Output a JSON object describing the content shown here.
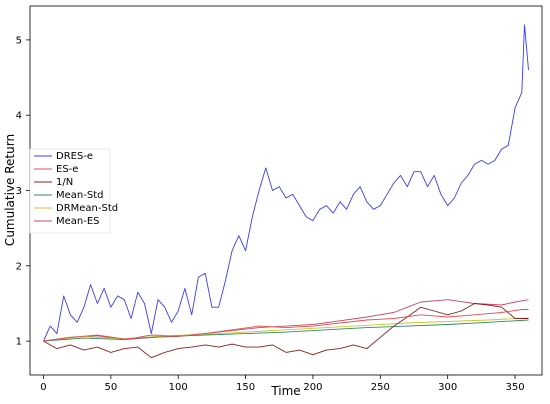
{
  "chart_data": {
    "type": "line",
    "title": "",
    "xlabel": "Time",
    "ylabel": "Cumulative Return",
    "xlim": [
      -10,
      370
    ],
    "ylim": [
      0.55,
      5.45
    ],
    "xticks": [
      0,
      50,
      100,
      150,
      200,
      250,
      300,
      350
    ],
    "yticks": [
      1,
      2,
      3,
      4,
      5
    ],
    "grid": false,
    "legend_position": "center-left",
    "series": [
      {
        "name": "DRES-e",
        "color": "#3b3bf5",
        "x": [
          0,
          5,
          10,
          15,
          20,
          25,
          30,
          35,
          40,
          45,
          50,
          55,
          60,
          65,
          70,
          75,
          80,
          85,
          90,
          95,
          100,
          105,
          110,
          115,
          120,
          125,
          130,
          135,
          140,
          145,
          150,
          155,
          160,
          165,
          170,
          175,
          180,
          185,
          190,
          195,
          200,
          205,
          210,
          215,
          220,
          225,
          230,
          235,
          240,
          245,
          250,
          255,
          260,
          265,
          270,
          275,
          280,
          285,
          290,
          295,
          300,
          305,
          310,
          315,
          320,
          325,
          330,
          335,
          340,
          345,
          350,
          355,
          357,
          360
        ],
        "y": [
          1.0,
          1.2,
          1.1,
          1.6,
          1.35,
          1.25,
          1.45,
          1.75,
          1.5,
          1.7,
          1.45,
          1.6,
          1.55,
          1.3,
          1.65,
          1.5,
          1.1,
          1.55,
          1.45,
          1.25,
          1.4,
          1.7,
          1.35,
          1.85,
          1.9,
          1.45,
          1.45,
          1.8,
          2.2,
          2.4,
          2.2,
          2.65,
          3.0,
          3.3,
          3.0,
          3.05,
          2.9,
          2.95,
          2.8,
          2.65,
          2.6,
          2.75,
          2.8,
          2.7,
          2.85,
          2.75,
          2.95,
          3.05,
          2.85,
          2.75,
          2.8,
          2.95,
          3.1,
          3.2,
          3.05,
          3.25,
          3.25,
          3.05,
          3.2,
          2.95,
          2.8,
          2.9,
          3.1,
          3.2,
          3.35,
          3.4,
          3.35,
          3.4,
          3.55,
          3.6,
          4.1,
          4.3,
          5.2,
          4.6
        ]
      },
      {
        "name": "ES-e",
        "color": "#e05050",
        "x": [
          0,
          20,
          40,
          60,
          80,
          100,
          120,
          140,
          160,
          180,
          200,
          220,
          240,
          260,
          280,
          300,
          320,
          340,
          355,
          360
        ],
        "y": [
          1.0,
          1.05,
          1.08,
          1.03,
          1.05,
          1.06,
          1.1,
          1.15,
          1.2,
          1.18,
          1.2,
          1.24,
          1.28,
          1.3,
          1.35,
          1.32,
          1.35,
          1.38,
          1.42,
          1.42
        ]
      },
      {
        "name": "1/N",
        "color": "#8b2020",
        "x": [
          0,
          10,
          20,
          30,
          40,
          50,
          60,
          70,
          80,
          90,
          100,
          110,
          120,
          130,
          140,
          150,
          160,
          170,
          180,
          190,
          200,
          210,
          220,
          230,
          240,
          250,
          260,
          270,
          280,
          290,
          300,
          310,
          320,
          330,
          340,
          350,
          360
        ],
        "y": [
          1.0,
          0.9,
          0.95,
          0.88,
          0.92,
          0.85,
          0.9,
          0.92,
          0.78,
          0.85,
          0.9,
          0.92,
          0.95,
          0.92,
          0.96,
          0.92,
          0.92,
          0.95,
          0.85,
          0.88,
          0.82,
          0.88,
          0.9,
          0.95,
          0.9,
          1.05,
          1.2,
          1.32,
          1.45,
          1.4,
          1.35,
          1.4,
          1.5,
          1.48,
          1.45,
          1.3,
          1.3
        ]
      },
      {
        "name": "Mean-Std",
        "color": "#2e8b57",
        "x": [
          0,
          30,
          60,
          90,
          120,
          150,
          180,
          210,
          240,
          270,
          300,
          330,
          360
        ],
        "y": [
          1.0,
          1.04,
          1.02,
          1.06,
          1.08,
          1.1,
          1.12,
          1.15,
          1.18,
          1.2,
          1.22,
          1.25,
          1.28
        ]
      },
      {
        "name": "DRMean-Std",
        "color": "#c8c832",
        "x": [
          0,
          30,
          60,
          90,
          120,
          150,
          180,
          210,
          240,
          270,
          300,
          330,
          360
        ],
        "y": [
          1.0,
          1.06,
          1.03,
          1.07,
          1.09,
          1.12,
          1.15,
          1.18,
          1.21,
          1.24,
          1.26,
          1.28,
          1.31
        ]
      },
      {
        "name": "Mean-ES",
        "color": "#c84870",
        "x": [
          0,
          20,
          40,
          60,
          80,
          100,
          120,
          140,
          160,
          180,
          200,
          220,
          240,
          260,
          270,
          280,
          300,
          320,
          340,
          350,
          360
        ],
        "y": [
          1.0,
          1.05,
          1.07,
          1.02,
          1.08,
          1.07,
          1.1,
          1.14,
          1.18,
          1.2,
          1.22,
          1.27,
          1.32,
          1.38,
          1.45,
          1.52,
          1.55,
          1.5,
          1.48,
          1.52,
          1.55
        ]
      }
    ]
  }
}
